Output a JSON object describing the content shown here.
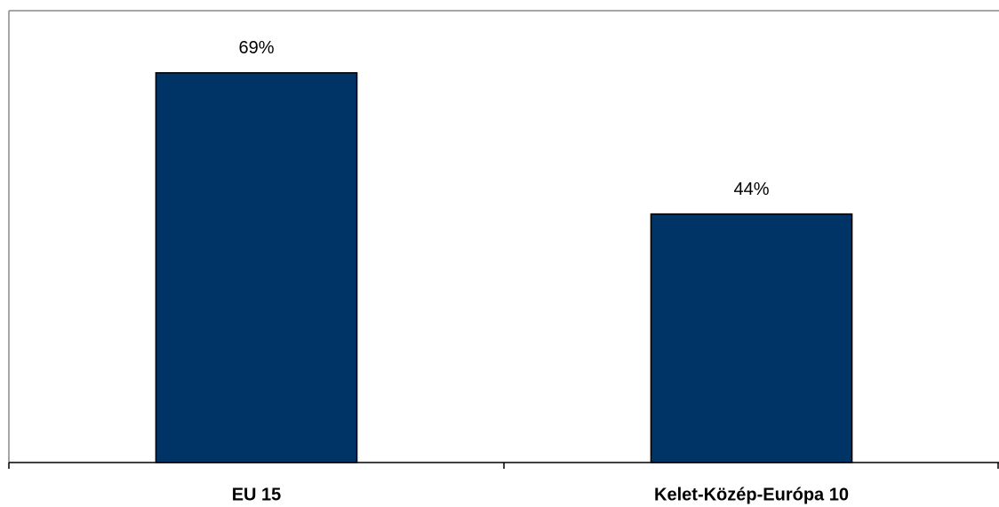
{
  "chart_data": {
    "type": "bar",
    "categories": [
      "EU 15",
      "Kelet-Közép-Európa 10"
    ],
    "values": [
      69,
      44
    ],
    "value_labels": [
      "69%",
      "44%"
    ],
    "color": "#003366",
    "ylim": [
      0,
      80
    ]
  }
}
